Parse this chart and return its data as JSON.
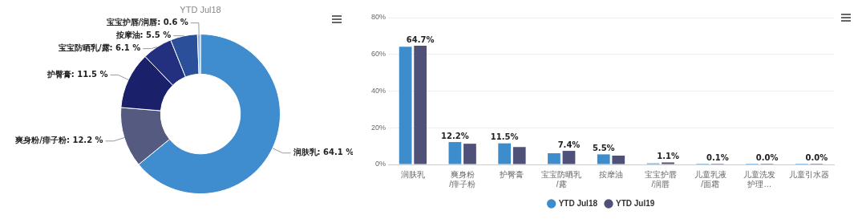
{
  "chart_data": [
    {
      "type": "donut",
      "title": "YTD Jul18",
      "categories": [
        "润肤乳",
        "爽身粉/痱子粉",
        "护臀膏",
        "宝宝防晒乳/露",
        "按摩油",
        "宝宝护唇/润唇"
      ],
      "values": [
        64.1,
        12.2,
        11.5,
        6.1,
        5.5,
        0.6
      ],
      "value_labels": [
        "64.1 %",
        "12.2 %",
        "11.5 %",
        "6.1 %",
        "5.5 %",
        "0.6 %"
      ],
      "colors": [
        "#3f8dcf",
        "#555b80",
        "#1b206b",
        "#22307f",
        "#2b4f98",
        "#8ab8e6"
      ],
      "legend": false
    },
    {
      "type": "bar",
      "categories": [
        "润肤乳",
        "爽身粉/痱子粉",
        "护臀膏",
        "宝宝防晒乳/露",
        "按摩油",
        "宝宝护唇/润唇",
        "儿童乳液/面霜",
        "儿童洗发护理…",
        "儿童引水器"
      ],
      "series": [
        {
          "name": "YTD Jul18",
          "color": "#3d8ccc",
          "values": [
            64.1,
            12.2,
            11.5,
            6.1,
            5.5,
            0.6,
            0,
            0,
            0
          ],
          "value_labels": [
            null,
            "12.2%",
            "11.5%",
            null,
            "5.5%",
            null,
            null,
            null,
            null
          ]
        },
        {
          "name": "YTD Jul19",
          "color": "#4f5178",
          "values": [
            64.7,
            11.3,
            9.5,
            7.4,
            4.8,
            1.1,
            0.1,
            0.0,
            0.0
          ],
          "value_labels": [
            "64.7%",
            null,
            null,
            "7.4%",
            null,
            "1.1%",
            "0.1%",
            "0.0%",
            "0.0%"
          ]
        }
      ],
      "ylim": [
        0,
        80
      ],
      "yticks": [
        {
          "value": 0,
          "label": "0%"
        },
        {
          "value": 20,
          "label": "20%"
        },
        {
          "value": 40,
          "label": "40%"
        },
        {
          "value": 60,
          "label": "60%"
        },
        {
          "value": 80,
          "label": "80%"
        }
      ],
      "grid": "y",
      "legend": "bottom"
    }
  ]
}
